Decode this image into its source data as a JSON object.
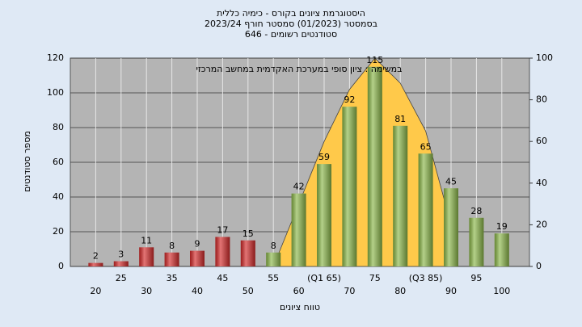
{
  "chart_data": {
    "type": "bar",
    "title": [
      "היסטוגרמת ציונים בקורס - כימיה כללית",
      "בסמסטר  (01/2023)  סמסטר חורף  2023/24",
      "סטודנטים רשומים - 646"
    ],
    "annotation": "במשימה : ציון סופי במערכת האקדמית במחשב המרכזי",
    "xlabel": "טווח ציונים",
    "ylabel": "מספר סטודנטים",
    "categories": [
      "20",
      "25",
      "30",
      "35",
      "40",
      "45",
      "50",
      "55",
      "60",
      "(Q1 65)",
      "70",
      "75",
      "80",
      "(Q3 85)",
      "90",
      "95",
      "100"
    ],
    "values": [
      2,
      3,
      11,
      8,
      9,
      17,
      15,
      8,
      42,
      59,
      92,
      115,
      81,
      65,
      45,
      28,
      19
    ],
    "colors": [
      "#d42a2a",
      "#d42a2a",
      "#d42a2a",
      "#d42a2a",
      "#d42a2a",
      "#d42a2a",
      "#d42a2a",
      "#8cb84a",
      "#8cb84a",
      "#8cb84a",
      "#8cb84a",
      "#8cb84a",
      "#8cb84a",
      "#8cb84a",
      "#8cb84a",
      "#8cb84a",
      "#8cb84a"
    ],
    "curve": {
      "axis": "y2",
      "color": "#ffc94a",
      "values": [
        null,
        null,
        null,
        null,
        null,
        null,
        null,
        0,
        30,
        60,
        85,
        100,
        88,
        65,
        20,
        null,
        null
      ]
    },
    "ylim": [
      0,
      120
    ],
    "yticks": [
      0,
      20,
      40,
      60,
      80,
      100,
      120
    ],
    "y2lim": [
      0,
      100
    ],
    "y2ticks": [
      0,
      20,
      40,
      60,
      80,
      100
    ],
    "grid": true
  }
}
